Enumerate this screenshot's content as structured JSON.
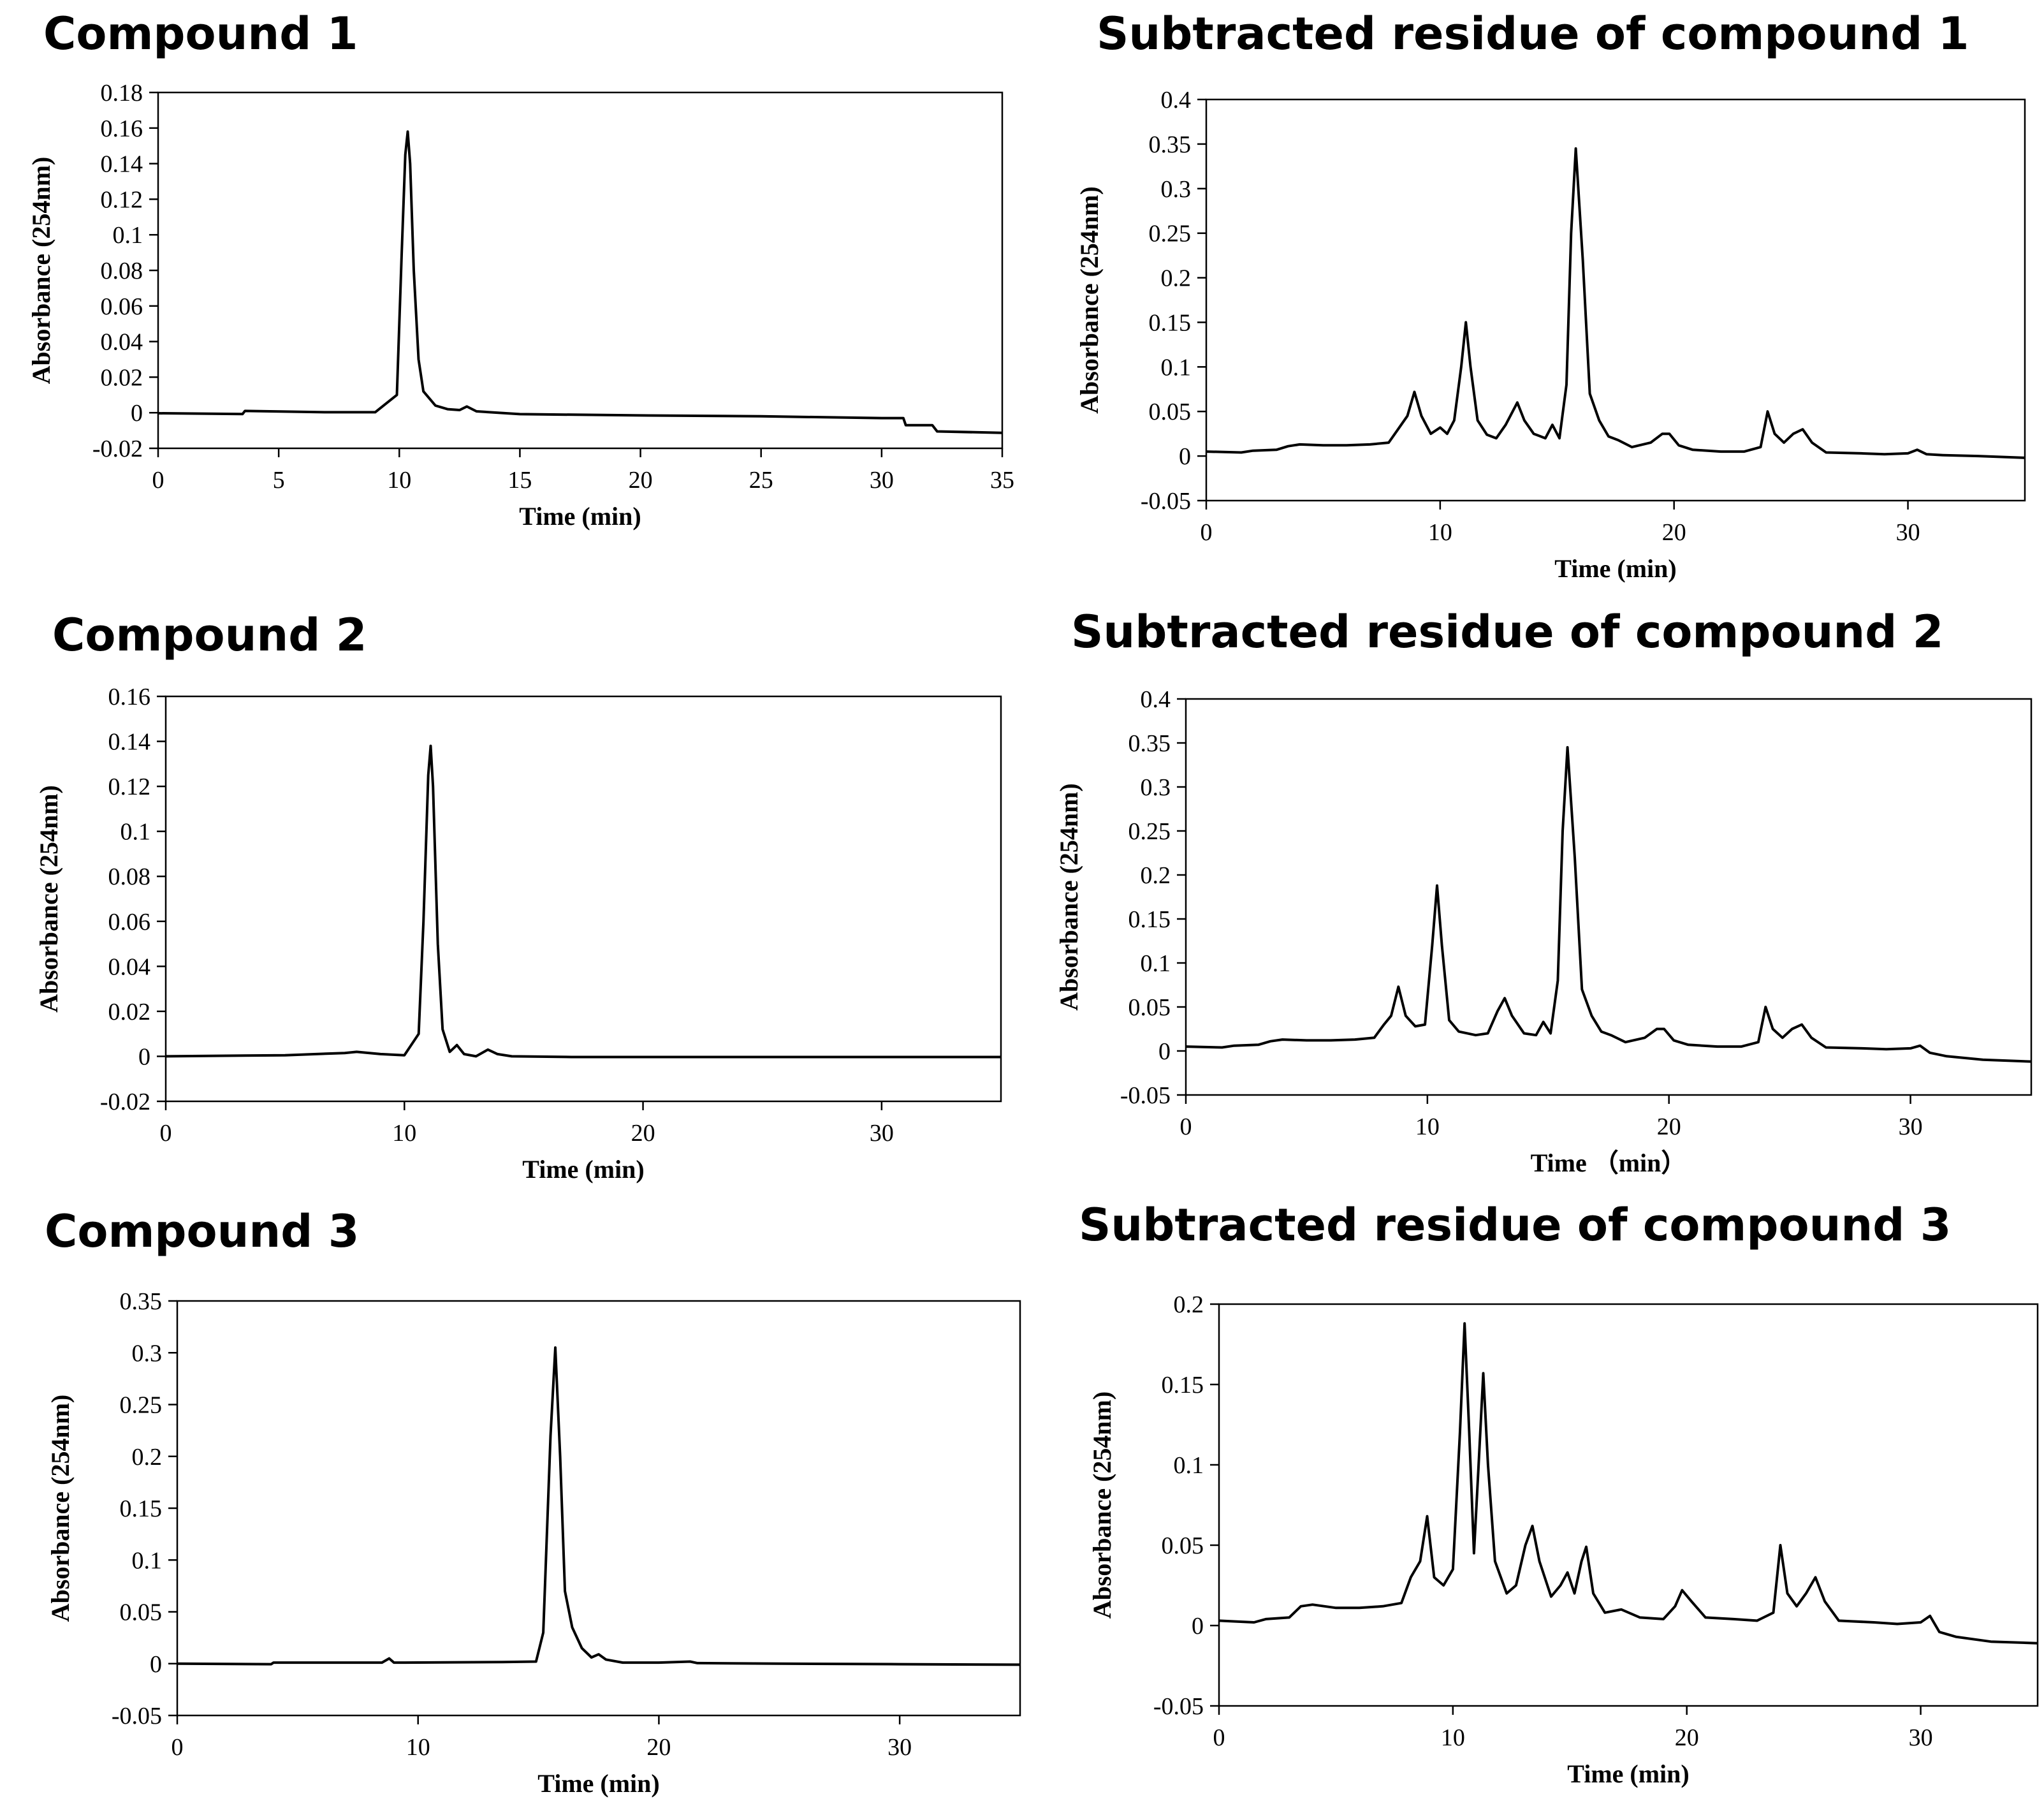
{
  "chart_data": [
    {
      "type": "line",
      "title": "Compound 1",
      "xlabel": "Time (min)",
      "ylabel": "Absorbance (254nm)",
      "xlim": [
        0,
        35
      ],
      "ylim": [
        -0.02,
        0.18
      ],
      "xticks": [
        "0",
        "5",
        "10",
        "15",
        "20",
        "25",
        "30",
        "35"
      ],
      "yticks": [
        "-0.02",
        "0",
        "0.02",
        "0.04",
        "0.06",
        "0.08",
        "0.1",
        "0.12",
        "0.14",
        "0.16",
        "0.18"
      ],
      "grid": false,
      "series": [
        {
          "name": "Compound 1",
          "x": [
            0,
            3.5,
            3.6,
            7,
            9,
            9.9,
            10.1,
            10.25,
            10.35,
            10.45,
            10.6,
            10.8,
            11.0,
            11.5,
            12,
            12.5,
            12.8,
            13.2,
            15,
            20,
            25,
            30,
            30.9,
            31,
            32.1,
            32.3,
            35
          ],
          "y": [
            -0.0003,
            -0.0007,
            0.001,
            0.0003,
            0.0003,
            0.01,
            0.09,
            0.145,
            0.158,
            0.14,
            0.08,
            0.03,
            0.012,
            0.004,
            0.002,
            0.0015,
            0.0035,
            0.0008,
            -0.0008,
            -0.0015,
            -0.002,
            -0.003,
            -0.003,
            -0.007,
            -0.007,
            -0.0105,
            -0.0113
          ]
        }
      ]
    },
    {
      "type": "line",
      "title": "Subtracted residue of  compound 1",
      "xlabel": "Time (min)",
      "ylabel": "Absorbance (254nm)",
      "xlim": [
        0,
        35
      ],
      "ylim": [
        -0.05,
        0.4
      ],
      "xticks": [
        "0",
        "10",
        "20",
        "30"
      ],
      "yticks": [
        "-0.05",
        "0",
        "0.05",
        "0.1",
        "0.15",
        "0.2",
        "0.25",
        "0.3",
        "0.35",
        "0.4"
      ],
      "grid": false,
      "series": [
        {
          "name": "Subtracted residue 1",
          "x": [
            0,
            1.5,
            2,
            3,
            3.5,
            4,
            5,
            6,
            7,
            7.8,
            8.2,
            8.6,
            8.9,
            9.2,
            9.6,
            10.0,
            10.3,
            10.6,
            10.9,
            11.1,
            11.3,
            11.6,
            12.0,
            12.4,
            12.8,
            13.1,
            13.3,
            13.6,
            14.0,
            14.5,
            14.8,
            15.1,
            15.4,
            15.6,
            15.8,
            16.1,
            16.4,
            16.8,
            17.2,
            17.6,
            18.2,
            19.0,
            19.5,
            19.8,
            20.2,
            20.8,
            22,
            23,
            23.7,
            24.0,
            24.3,
            24.7,
            25.1,
            25.5,
            25.9,
            26.5,
            28,
            29,
            30,
            30.4,
            30.8,
            31.5,
            33,
            35
          ],
          "y": [
            0.005,
            0.004,
            0.006,
            0.007,
            0.011,
            0.013,
            0.012,
            0.012,
            0.013,
            0.015,
            0.03,
            0.045,
            0.072,
            0.045,
            0.025,
            0.032,
            0.025,
            0.04,
            0.1,
            0.15,
            0.1,
            0.04,
            0.024,
            0.02,
            0.035,
            0.05,
            0.06,
            0.04,
            0.025,
            0.02,
            0.035,
            0.02,
            0.08,
            0.25,
            0.345,
            0.22,
            0.07,
            0.04,
            0.022,
            0.018,
            0.01,
            0.015,
            0.025,
            0.025,
            0.012,
            0.007,
            0.005,
            0.005,
            0.01,
            0.05,
            0.025,
            0.015,
            0.025,
            0.03,
            0.015,
            0.004,
            0.003,
            0.002,
            0.003,
            0.007,
            0.002,
            0.001,
            0.0,
            -0.002
          ]
        }
      ]
    },
    {
      "type": "line",
      "title": "Compound 2",
      "xlabel": "Time (min)",
      "ylabel": "Absorbance (254nm)",
      "xlim": [
        0,
        35
      ],
      "ylim": [
        -0.02,
        0.16
      ],
      "xticks": [
        "0",
        "10",
        "20",
        "30"
      ],
      "yticks": [
        "-0.02",
        "0",
        "0.02",
        "0.04",
        "0.06",
        "0.08",
        "0.1",
        "0.12",
        "0.14",
        "0.16"
      ],
      "grid": false,
      "series": [
        {
          "name": "Compound 2",
          "x": [
            0,
            5,
            7.5,
            8,
            9,
            10,
            10.6,
            10.8,
            11.0,
            11.1,
            11.2,
            11.4,
            11.6,
            11.9,
            12.2,
            12.5,
            13,
            13.5,
            13.9,
            14.5,
            17,
            20,
            25,
            30,
            35
          ],
          "y": [
            0.0,
            0.0005,
            0.0015,
            0.002,
            0.001,
            0.0005,
            0.01,
            0.06,
            0.125,
            0.138,
            0.12,
            0.05,
            0.012,
            0.002,
            0.005,
            0.001,
            0.0,
            0.003,
            0.001,
            0.0,
            -0.0003,
            -0.0003,
            -0.0003,
            -0.0003,
            -0.0003
          ]
        }
      ]
    },
    {
      "type": "line",
      "title": "Subtracted residue of  compound 2",
      "xlabel": "Time （min）",
      "ylabel": "Absorbance (254nm)",
      "xlim": [
        0,
        35
      ],
      "ylim": [
        -0.05,
        0.4
      ],
      "xticks": [
        "0",
        "10",
        "20",
        "30"
      ],
      "yticks": [
        "-0.05",
        "0",
        "0.05",
        "0.1",
        "0.15",
        "0.2",
        "0.25",
        "0.3",
        "0.35",
        "0.4"
      ],
      "grid": false,
      "series": [
        {
          "name": "Subtracted residue 2",
          "x": [
            0,
            1.5,
            2,
            3,
            3.5,
            4,
            5,
            6,
            7,
            7.8,
            8.2,
            8.5,
            8.8,
            9.1,
            9.5,
            9.9,
            10.2,
            10.4,
            10.6,
            10.9,
            11.3,
            12.0,
            12.5,
            12.9,
            13.2,
            13.5,
            14.0,
            14.5,
            14.8,
            15.1,
            15.4,
            15.6,
            15.8,
            16.1,
            16.4,
            16.8,
            17.2,
            17.6,
            18.2,
            19.0,
            19.5,
            19.8,
            20.2,
            20.8,
            22,
            23,
            23.7,
            24.0,
            24.3,
            24.7,
            25.1,
            25.5,
            25.9,
            26.5,
            28,
            29,
            30,
            30.4,
            30.8,
            31.5,
            33,
            35
          ],
          "y": [
            0.005,
            0.004,
            0.006,
            0.007,
            0.011,
            0.013,
            0.012,
            0.012,
            0.013,
            0.015,
            0.03,
            0.04,
            0.073,
            0.04,
            0.028,
            0.03,
            0.12,
            0.188,
            0.12,
            0.035,
            0.022,
            0.018,
            0.02,
            0.045,
            0.06,
            0.04,
            0.02,
            0.018,
            0.033,
            0.02,
            0.08,
            0.25,
            0.345,
            0.22,
            0.07,
            0.04,
            0.022,
            0.018,
            0.01,
            0.015,
            0.025,
            0.025,
            0.012,
            0.007,
            0.005,
            0.005,
            0.01,
            0.05,
            0.025,
            0.015,
            0.025,
            0.03,
            0.015,
            0.004,
            0.003,
            0.002,
            0.003,
            0.006,
            -0.002,
            -0.006,
            -0.01,
            -0.012
          ]
        }
      ]
    },
    {
      "type": "line",
      "title": "Compound 3",
      "xlabel": "Time (min)",
      "ylabel": "Absorbance (254nm)",
      "xlim": [
        0,
        35
      ],
      "ylim": [
        -0.05,
        0.35
      ],
      "xticks": [
        "0",
        "10",
        "20",
        "30"
      ],
      "yticks": [
        "-0.05",
        "0",
        "0.05",
        "0.1",
        "0.15",
        "0.2",
        "0.25",
        "0.3",
        "0.35"
      ],
      "grid": false,
      "series": [
        {
          "name": "Compound 3",
          "x": [
            0,
            3.9,
            4.0,
            8.5,
            8.8,
            9.0,
            9.3,
            13.5,
            14.9,
            15.2,
            15.5,
            15.7,
            15.9,
            16.1,
            16.4,
            16.8,
            17.2,
            17.5,
            17.8,
            18.5,
            20,
            21.3,
            21.6,
            25,
            30,
            35
          ],
          "y": [
            0.0,
            -0.0005,
            0.001,
            0.001,
            0.005,
            0.001,
            0.001,
            0.0015,
            0.002,
            0.03,
            0.22,
            0.305,
            0.2,
            0.07,
            0.035,
            0.015,
            0.006,
            0.009,
            0.004,
            0.001,
            0.001,
            0.002,
            0.0005,
            0.0,
            -0.0005,
            -0.001
          ]
        }
      ]
    },
    {
      "type": "line",
      "title": "Subtracted residue of  compound 3",
      "xlabel": "Time (min)",
      "ylabel": "Absorbance (254nm)",
      "xlim": [
        0,
        35
      ],
      "ylim": [
        -0.05,
        0.2
      ],
      "xticks": [
        "0",
        "10",
        "20",
        "30"
      ],
      "yticks": [
        "-0.05",
        "0",
        "0.05",
        "0.1",
        "0.15",
        "0.2"
      ],
      "grid": false,
      "series": [
        {
          "name": "Subtracted residue 3",
          "x": [
            0,
            1.5,
            2,
            3,
            3.5,
            4,
            5,
            6,
            7,
            7.8,
            8.2,
            8.6,
            8.9,
            9.2,
            9.6,
            10.0,
            10.3,
            10.5,
            10.7,
            10.9,
            11.1,
            11.3,
            11.5,
            11.8,
            12.3,
            12.7,
            13.1,
            13.4,
            13.7,
            14.2,
            14.6,
            14.9,
            15.2,
            15.5,
            15.7,
            16.0,
            16.5,
            17.2,
            18.0,
            19.0,
            19.5,
            19.8,
            20.2,
            20.8,
            22,
            23,
            23.7,
            24.0,
            24.3,
            24.7,
            25.1,
            25.5,
            25.9,
            26.5,
            28,
            29,
            30,
            30.4,
            30.8,
            31.5,
            33,
            35
          ],
          "y": [
            0.003,
            0.002,
            0.004,
            0.005,
            0.012,
            0.013,
            0.011,
            0.011,
            0.012,
            0.014,
            0.03,
            0.04,
            0.068,
            0.03,
            0.025,
            0.035,
            0.12,
            0.188,
            0.12,
            0.045,
            0.1,
            0.157,
            0.1,
            0.04,
            0.02,
            0.025,
            0.05,
            0.062,
            0.04,
            0.018,
            0.025,
            0.033,
            0.02,
            0.04,
            0.049,
            0.02,
            0.008,
            0.01,
            0.005,
            0.004,
            0.012,
            0.022,
            0.015,
            0.005,
            0.004,
            0.003,
            0.008,
            0.05,
            0.02,
            0.012,
            0.02,
            0.03,
            0.015,
            0.003,
            0.002,
            0.001,
            0.002,
            0.006,
            -0.004,
            -0.007,
            -0.01,
            -0.011
          ]
        }
      ]
    }
  ]
}
